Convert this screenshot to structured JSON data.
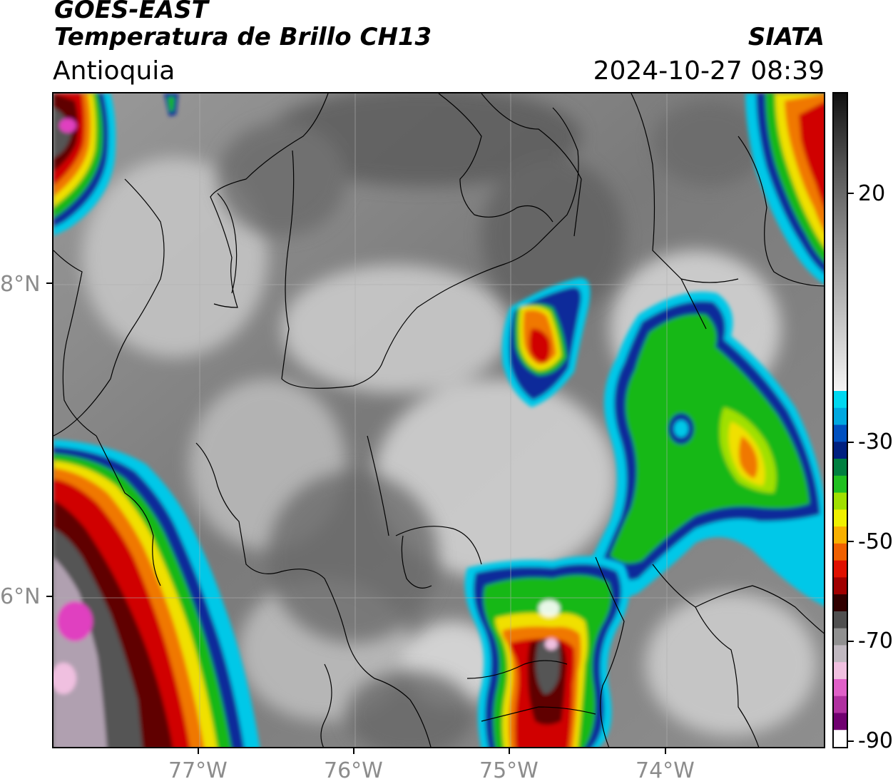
{
  "header": {
    "satellite": "GOES-EAST",
    "product": "Temperatura de Brillo CH13",
    "region": "Antioquia",
    "agency": "SIATA",
    "datetime": "2024-10-27 08:39"
  },
  "map": {
    "lat_labels": [
      "8°N",
      "6°N"
    ],
    "lon_labels": [
      "77°W",
      "76°W",
      "75°W",
      "74°W"
    ],
    "colors": {
      "warm_gray_light": "#d9d9d9",
      "warm_gray_dark": "#6e6e6e",
      "cyan": "#00c8e8",
      "blue": "#0a2a9a",
      "green": "#18b818",
      "yellow": "#f0e000",
      "orange": "#f07800",
      "red": "#d00000",
      "dark_red": "#600000",
      "magenta": "#e040c0",
      "pale_pink": "#f0d8e8"
    }
  },
  "colorbar": {
    "labels": [
      "20",
      "-30",
      "-50",
      "-70",
      "-90"
    ],
    "colors": [
      "#111111",
      "#444444",
      "#6f6f6f",
      "#999999",
      "#c4c4c4",
      "#efefef",
      "#00d8f0",
      "#00a8e0",
      "#0050c0",
      "#002080",
      "#008040",
      "#20c020",
      "#a0e000",
      "#f0f000",
      "#f8b000",
      "#f06000",
      "#e01000",
      "#a00000",
      "#300000",
      "#505050",
      "#909090",
      "#c0b8c0",
      "#f0c0e0",
      "#e060c8",
      "#b030a0",
      "#700070",
      "#ffffff"
    ]
  }
}
